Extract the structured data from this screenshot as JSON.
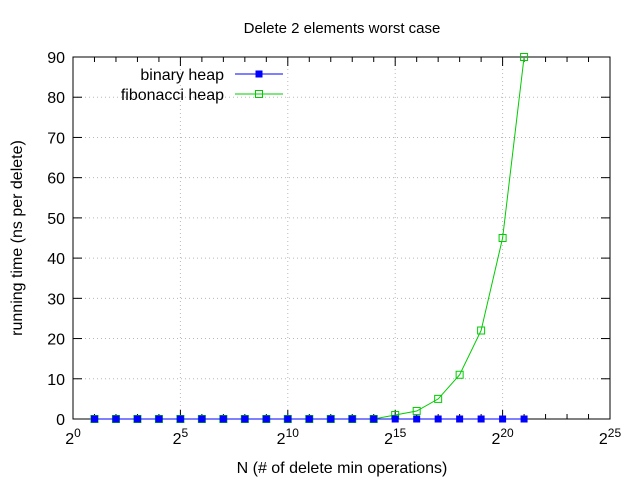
{
  "chart_data": {
    "type": "line",
    "title": "Delete 2 elements worst case",
    "xlabel": "N (# of delete min operations)",
    "ylabel": "running time (ns per delete)",
    "x_scale": "log2",
    "x_tick_base": "2",
    "x_tick_exponents": [
      "0",
      "5",
      "10",
      "15",
      "20",
      "25"
    ],
    "xlim_exponent": [
      0,
      25
    ],
    "y_ticks": [
      "0",
      "10",
      "20",
      "30",
      "40",
      "50",
      "60",
      "70",
      "80",
      "90"
    ],
    "ylim": [
      0,
      90
    ],
    "grid": true,
    "legend_position": "top-left",
    "series": [
      {
        "name": "binary heap",
        "color": "#0000ff",
        "marker": "filled-square",
        "x_exponent": [
          1,
          2,
          3,
          4,
          5,
          6,
          7,
          8,
          9,
          10,
          11,
          12,
          13,
          14,
          15,
          16,
          17,
          18,
          19,
          20,
          21
        ],
        "values": [
          0,
          0,
          0,
          0,
          0,
          0,
          0,
          0,
          0,
          0,
          0,
          0,
          0,
          0,
          0,
          0,
          0,
          0,
          0,
          0,
          0
        ]
      },
      {
        "name": "fibonacci heap",
        "color": "#00cc00",
        "marker": "open-square",
        "x_exponent": [
          1,
          2,
          3,
          4,
          5,
          6,
          7,
          8,
          9,
          10,
          11,
          12,
          13,
          14,
          15,
          16,
          17,
          18,
          19,
          20,
          21
        ],
        "values": [
          0,
          0,
          0,
          0,
          0,
          0,
          0,
          0,
          0,
          0,
          0,
          0,
          0,
          0,
          1,
          2,
          5,
          11,
          22,
          45,
          90
        ]
      }
    ]
  }
}
